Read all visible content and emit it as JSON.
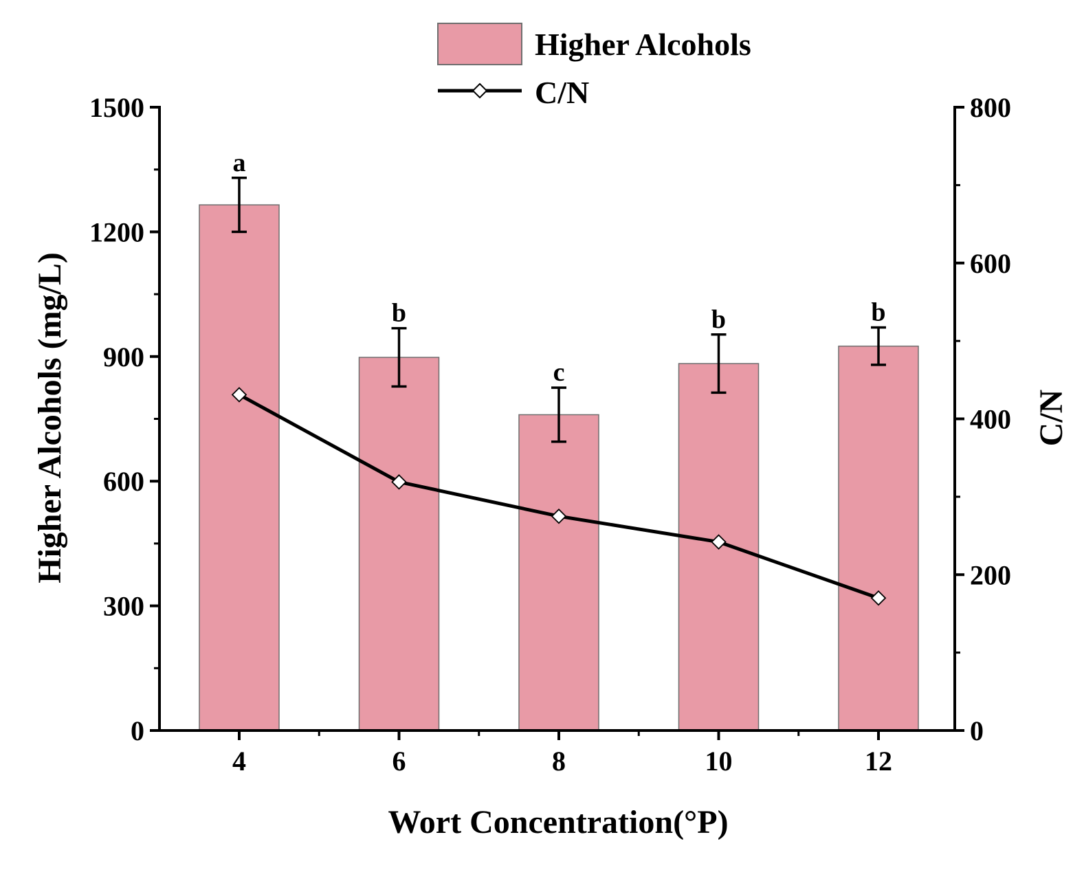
{
  "chart_data": {
    "type": "bar",
    "title": "",
    "xlabel": "Wort Concentration(°P)",
    "ylabel": "Higher Alcohols (mg/L)",
    "y2label": "C/N",
    "categories": [
      "4",
      "6",
      "8",
      "10",
      "12"
    ],
    "ylim": [
      0,
      1500
    ],
    "yticks": [
      0,
      300,
      600,
      900,
      1200,
      1500
    ],
    "y2lim": [
      0,
      800
    ],
    "y2ticks": [
      0,
      200,
      400,
      600,
      800
    ],
    "legend_position": "top-center",
    "grid": false,
    "series": [
      {
        "name": "Higher Alcohols",
        "kind": "bar",
        "axis": "left",
        "color": "#e89aa6",
        "values": [
          1265,
          898,
          760,
          883,
          925
        ],
        "errors": [
          65,
          70,
          65,
          70,
          45
        ],
        "significance": [
          "a",
          "b",
          "c",
          "b",
          "b"
        ]
      },
      {
        "name": "C/N",
        "kind": "line",
        "axis": "right",
        "color": "#000000",
        "marker": "diamond",
        "values": [
          431,
          319,
          275,
          242,
          170
        ]
      }
    ]
  }
}
